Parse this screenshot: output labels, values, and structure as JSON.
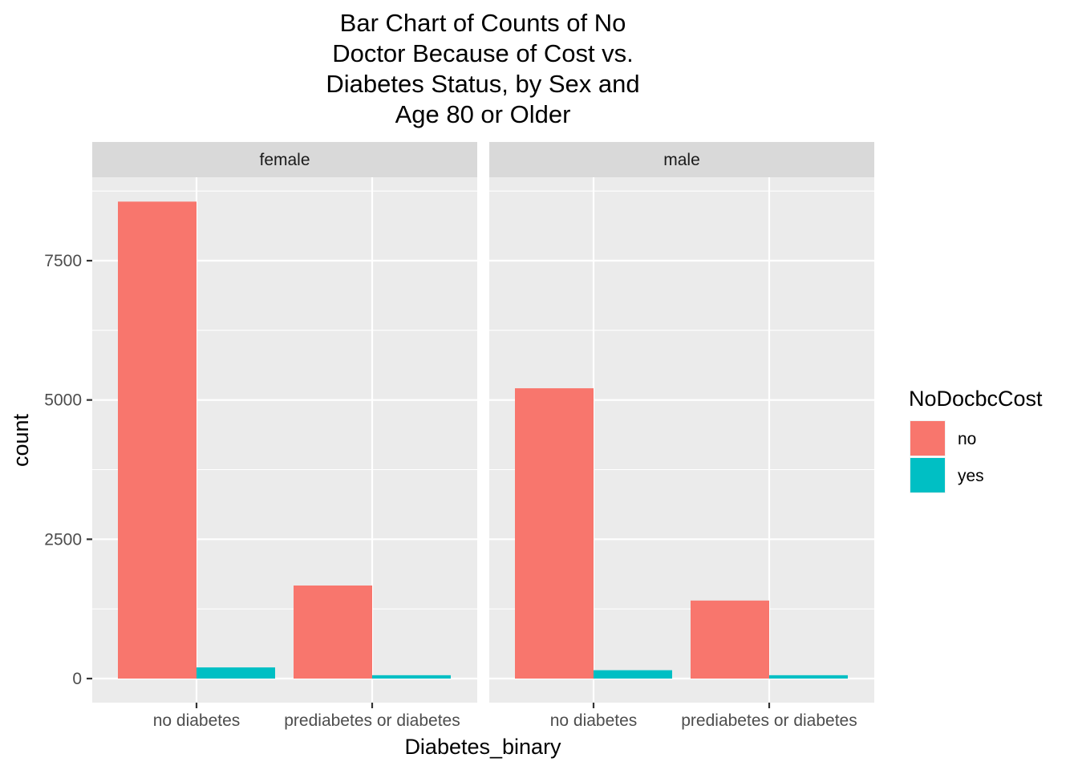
{
  "chart_data": {
    "type": "bar",
    "title_lines": [
      "Bar Chart of Counts of No",
      "Doctor Because of Cost vs.",
      "Diabetes Status, by Sex and",
      "Age 80 or Older"
    ],
    "xlabel": "Diabetes_binary",
    "ylabel": "count",
    "ylim": [
      -400,
      9100
    ],
    "yticks": [
      0,
      2500,
      5000,
      7500
    ],
    "ytick_labels": [
      "0",
      "2500",
      "5000",
      "7500"
    ],
    "categories": [
      "no diabetes",
      "prediabetes or diabetes"
    ],
    "legend": {
      "title": "NoDocbcCost",
      "position": "right",
      "entries": [
        {
          "label": "no",
          "color": "#F8766D"
        },
        {
          "label": "yes",
          "color": "#00BFC4"
        }
      ]
    },
    "grid": true,
    "panels": [
      {
        "label": "female",
        "series": [
          {
            "name": "no",
            "values": [
              8560,
              1670
            ]
          },
          {
            "name": "yes",
            "values": [
              200,
              60
            ]
          }
        ]
      },
      {
        "label": "male",
        "series": [
          {
            "name": "no",
            "values": [
              5210,
              1400
            ]
          },
          {
            "name": "yes",
            "values": [
              150,
              60
            ]
          }
        ]
      }
    ]
  },
  "colors": {
    "panel_background": "#EBEBEB",
    "strip_background": "#D9D9D9",
    "grid_major": "#FFFFFF",
    "no": "#F8766D",
    "yes": "#00BFC4"
  }
}
